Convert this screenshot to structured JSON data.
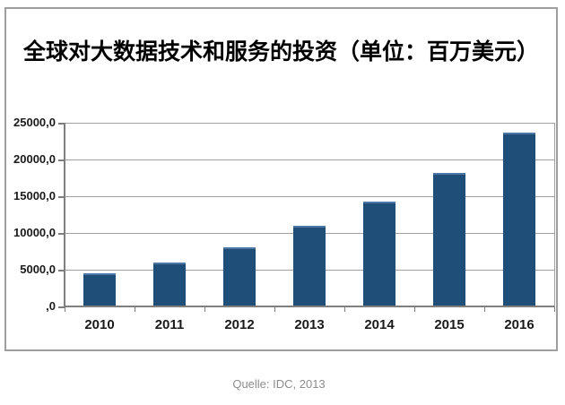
{
  "caption": "Quelle: IDC, 2013",
  "chart_data": {
    "type": "bar",
    "title": "全球对大数据技术和服务的投资（单位：百万美元）",
    "categories": [
      "2010",
      "2011",
      "2012",
      "2013",
      "2014",
      "2015",
      "2016"
    ],
    "values": [
      4500,
      6000,
      8100,
      11000,
      14300,
      18200,
      23700
    ],
    "y_ticks": [
      25000,
      20000,
      15000,
      10000,
      5000,
      0
    ],
    "y_tick_labels": [
      "25000,0",
      "20000,0",
      "15000,0",
      "10000,0",
      "5000,0",
      ",0"
    ],
    "ylim": [
      0,
      25000
    ],
    "grid": true,
    "legend": "none",
    "bar_color": "#1F4E79",
    "bar_highlight_color": "#4f77a6",
    "gridline_color": "#a0a0a0",
    "axis_color": "#7f7f7f",
    "source": "Quelle: IDC, 2013"
  }
}
